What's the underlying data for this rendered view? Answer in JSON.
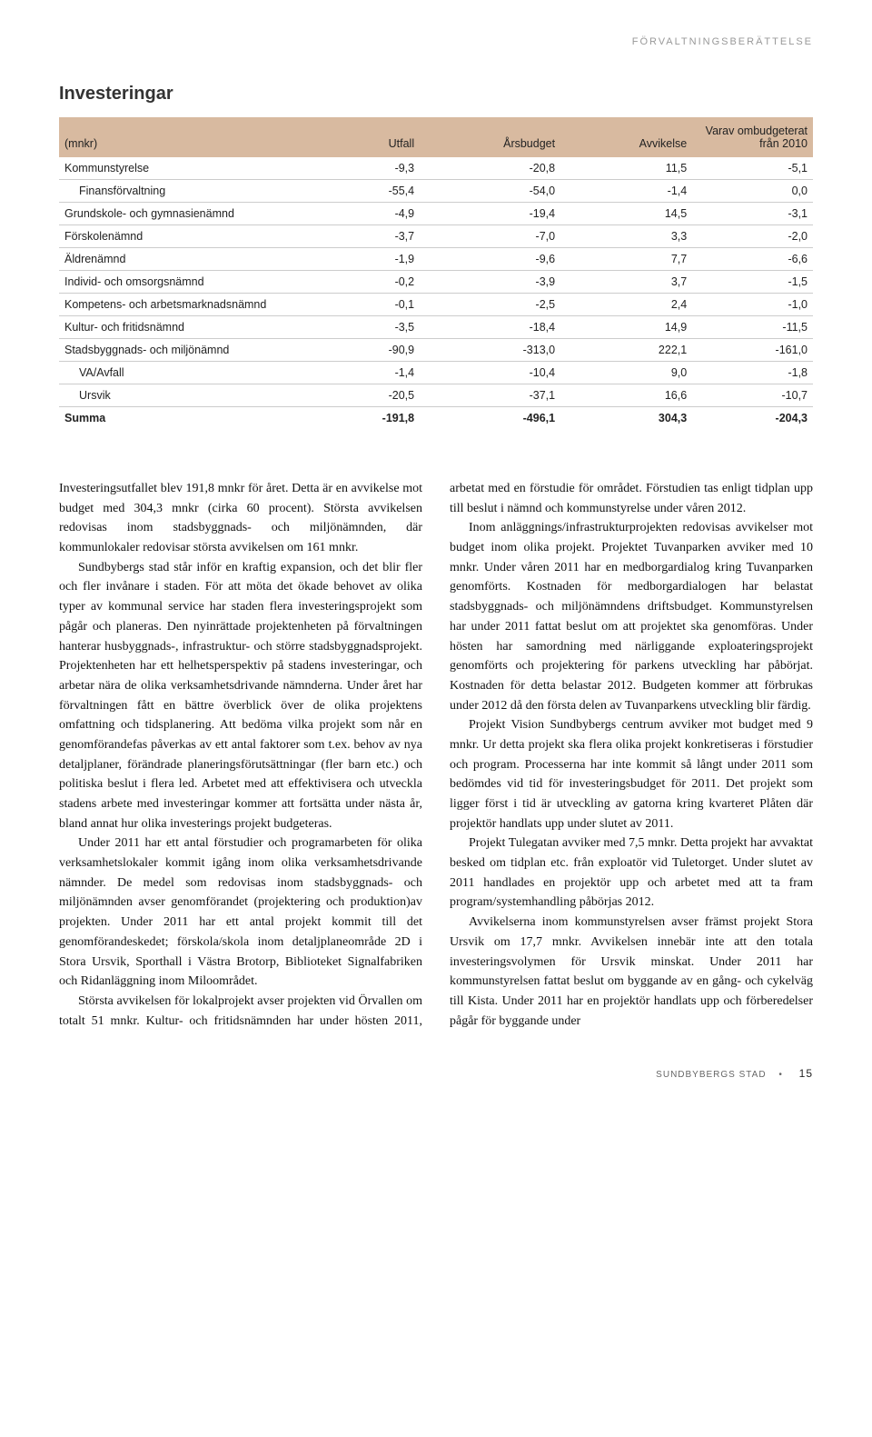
{
  "header_label": "FÖRVALTNINGSBERÄTTELSE",
  "section_title": "Investeringar",
  "table": {
    "columns": [
      "(mnkr)",
      "Utfall",
      "Årsbudget",
      "Avvikelse",
      "Varav ombudgeterat från 2010"
    ],
    "rows": [
      {
        "label": "Kommunstyrelse",
        "c1": "-9,3",
        "c2": "-20,8",
        "c3": "11,5",
        "c4": "-5,1",
        "indent": false
      },
      {
        "label": "Finansförvaltning",
        "c1": "-55,4",
        "c2": "-54,0",
        "c3": "-1,4",
        "c4": "0,0",
        "indent": true
      },
      {
        "label": "Grundskole- och gymnasienämnd",
        "c1": "-4,9",
        "c2": "-19,4",
        "c3": "14,5",
        "c4": "-3,1",
        "indent": false
      },
      {
        "label": "Förskolenämnd",
        "c1": "-3,7",
        "c2": "-7,0",
        "c3": "3,3",
        "c4": "-2,0",
        "indent": false
      },
      {
        "label": "Äldrenämnd",
        "c1": "-1,9",
        "c2": "-9,6",
        "c3": "7,7",
        "c4": "-6,6",
        "indent": false
      },
      {
        "label": "Individ- och omsorgsnämnd",
        "c1": "-0,2",
        "c2": "-3,9",
        "c3": "3,7",
        "c4": "-1,5",
        "indent": false
      },
      {
        "label": "Kompetens- och arbetsmarknadsnämnd",
        "c1": "-0,1",
        "c2": "-2,5",
        "c3": "2,4",
        "c4": "-1,0",
        "indent": false
      },
      {
        "label": "Kultur- och fritidsnämnd",
        "c1": "-3,5",
        "c2": "-18,4",
        "c3": "14,9",
        "c4": "-11,5",
        "indent": false
      },
      {
        "label": "Stadsbyggnads- och miljönämnd",
        "c1": "-90,9",
        "c2": "-313,0",
        "c3": "222,1",
        "c4": "-161,0",
        "indent": false
      },
      {
        "label": "VA/Avfall",
        "c1": "-1,4",
        "c2": "-10,4",
        "c3": "9,0",
        "c4": "-1,8",
        "indent": true
      },
      {
        "label": "Ursvik",
        "c1": "-20,5",
        "c2": "-37,1",
        "c3": "16,6",
        "c4": "-10,7",
        "indent": true
      }
    ],
    "total": {
      "label": "Summa",
      "c1": "-191,8",
      "c2": "-496,1",
      "c3": "304,3",
      "c4": "-204,3"
    }
  },
  "body_paragraphs": [
    "Investeringsutfallet blev 191,8 mnkr för året. Detta är en avvikelse mot budget med 304,3 mnkr (cirka 60 procent). Största avvikelsen redovisas inom stadsbyggnads- och miljönämnden, där kommunlokaler redovisar största avvikelsen om 161 mnkr.",
    "Sundbybergs stad står inför en kraftig expansion, och det blir fler och fler invånare i staden. För att möta det ökade behovet av olika typer av kommunal service har staden flera investeringsprojekt som pågår och planeras. Den nyinrättade projektenheten på förvaltningen hanterar husbyggnads-, infrastruktur- och större stadsbyggnadsprojekt. Projektenheten har ett helhetsperspektiv på stadens investeringar, och arbetar nära de olika verksamhetsdrivande nämnderna. Under året har förvaltningen fått en bättre överblick över de olika projektens omfattning och tidsplanering. Att bedöma vilka projekt som når en genomförandefas påverkas av ett antal faktorer som t.ex. behov av nya detaljplaner, förändrade planeringsförutsättningar (fler barn etc.) och politiska beslut i flera led. Arbetet med att effektivisera och utveckla stadens arbete med investeringar kommer att fortsätta under nästa år, bland annat hur olika investerings projekt budgeteras.",
    "Under 2011 har ett antal förstudier och programarbeten för olika verksamhetslokaler kommit igång inom olika verksamhetsdrivande nämnder. De medel som redovisas inom stadsbyggnads- och miljönämnden avser genomförandet (projektering och produktion)av projekten. Under 2011 har ett antal projekt kommit till det genomförandeskedet; förskola/skola inom detaljplaneområde 2D i Stora Ursvik, Sporthall i Västra Brotorp, Biblioteket Signalfabriken och Ridanläggning inom Miloområdet.",
    "Största avvikelsen för lokalprojekt avser projekten vid Örvallen om totalt 51 mnkr. Kultur- och fritidsnämnden har under hösten 2011, arbetat med en förstudie för området. Förstudien tas enligt tidplan upp till beslut i nämnd och kommunstyrelse under våren 2012.",
    "Inom anläggnings/infrastrukturprojekten redovisas avvikelser mot budget inom olika projekt. Projektet Tuvanparken avviker med 10 mnkr. Under våren 2011 har en medborgardialog kring Tuvanparken genomförts. Kostnaden för medborgardialogen har belastat stadsbyggnads- och miljönämndens driftsbudget. Kommunstyrelsen har under 2011 fattat beslut om att projektet ska genomföras. Under hösten har samordning med närliggande exploateringsprojekt genomförts och projektering för parkens utveckling har påbörjat. Kostnaden för detta belastar 2012. Budgeten kommer att förbrukas under 2012 då den första delen av Tuvanparkens utveckling blir färdig.",
    "Projekt Vision Sundbybergs centrum avviker mot budget med 9 mnkr. Ur detta projekt ska flera olika projekt konkretiseras i förstudier och program. Processerna har inte kommit så långt under 2011 som bedömdes vid tid för investeringsbudget för 2011. Det projekt som ligger först i tid är utveckling av gatorna kring kvarteret Plåten där projektör handlats upp under slutet av 2011.",
    "Projekt Tulegatan avviker med 7,5 mnkr. Detta projekt har avvaktat besked om tidplan etc. från exploatör vid Tuletorget. Under slutet av 2011 handlades en projektör upp och arbetet med att ta fram program/systemhandling påbörjas 2012.",
    "Avvikelserna inom kommunstyrelsen avser främst projekt Stora Ursvik om 17,7 mnkr. Avvikelsen innebär inte att den totala investeringsvolymen för Ursvik minskat. Under 2011 har kommunstyrelsen fattat beslut om byggande av en gång- och cykelväg till Kista. Under 2011 har en projektör handlats upp och förberedelser pågår för byggande under"
  ],
  "footer": {
    "label": "SUNDBYBERGS STAD",
    "bullet": "•",
    "page": "15"
  }
}
